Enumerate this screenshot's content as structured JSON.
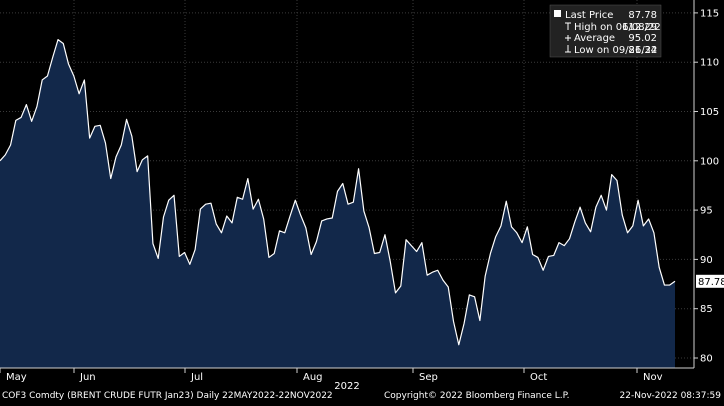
{
  "chart_data": {
    "type": "area",
    "title": "",
    "xlabel": "",
    "ylabel": "",
    "ylim": [
      78,
      115
    ],
    "yticks": [
      80,
      85,
      90,
      95,
      100,
      105,
      110,
      115
    ],
    "grid": true,
    "x_month_labels": [
      "May",
      "Jun",
      "Jul",
      "Aug",
      "Sep",
      "Oct",
      "Nov"
    ],
    "x_year_label": "2022",
    "series": [
      {
        "values": [
          100.0,
          100.6,
          101.6,
          104.1,
          104.4,
          105.7,
          104.0,
          105.5,
          108.2,
          108.6,
          110.5,
          112.29,
          111.9,
          109.8,
          108.6,
          106.8,
          108.2,
          102.3,
          103.5,
          103.6,
          101.8,
          98.2,
          100.4,
          101.6,
          104.2,
          102.5,
          98.9,
          100.1,
          100.5,
          91.6,
          90.1,
          94.3,
          96.0,
          96.5,
          90.3,
          90.7,
          89.5,
          91.0,
          95.1,
          95.6,
          95.7,
          93.6,
          92.7,
          94.4,
          93.7,
          96.3,
          96.1,
          98.2,
          95.1,
          96.1,
          94.1,
          90.2,
          90.6,
          92.9,
          92.7,
          94.4,
          96.0,
          94.5,
          93.2,
          90.5,
          91.8,
          93.9,
          94.1,
          94.2,
          96.9,
          97.7,
          95.6,
          95.8,
          99.2,
          94.9,
          93.2,
          90.6,
          90.7,
          92.5,
          89.8,
          86.6,
          87.3,
          92.0,
          91.4,
          90.8,
          91.7,
          88.4,
          88.7,
          88.9,
          87.9,
          87.2,
          83.7,
          81.34,
          83.5,
          86.4,
          86.2,
          83.8,
          88.3,
          90.6,
          92.3,
          93.4,
          95.9,
          93.3,
          92.7,
          91.7,
          93.3,
          90.5,
          90.2,
          88.9,
          90.3,
          90.4,
          91.7,
          91.4,
          92.1,
          93.8,
          95.3,
          93.7,
          92.8,
          95.3,
          96.5,
          95.0,
          98.6,
          98.0,
          94.5,
          92.7,
          93.4,
          96.0,
          93.4,
          94.1,
          92.7,
          89.2,
          87.4,
          87.4,
          87.78
        ]
      }
    ],
    "last_value_label": "87.78",
    "legend": {
      "position": "top-right",
      "entries": [
        {
          "label": "Last Price",
          "value": "87.78",
          "icon": "filled-square-icon"
        },
        {
          "label": "High on 06/08/22",
          "value": "112.29",
          "icon": "high-marker-icon"
        },
        {
          "label": "Average",
          "value": "95.02",
          "icon": "average-marker-icon"
        },
        {
          "label": "Low on 09/26/22",
          "value": "81.34",
          "icon": "low-marker-icon"
        }
      ]
    }
  },
  "footer": {
    "left": "COF3 Comdty  (BRENT CRUDE FUTR  Jan23)  Daily 22MAY2022-22NOV2022",
    "middle": "Copyright© 2022 Bloomberg Finance L.P.",
    "right": "22-Nov-2022 08:37:59"
  },
  "colors": {
    "background": "#000000",
    "area_fill": "#12284a",
    "line": "#ffffff",
    "grid": "#3a3a3a",
    "legend_bg": "#222222"
  }
}
